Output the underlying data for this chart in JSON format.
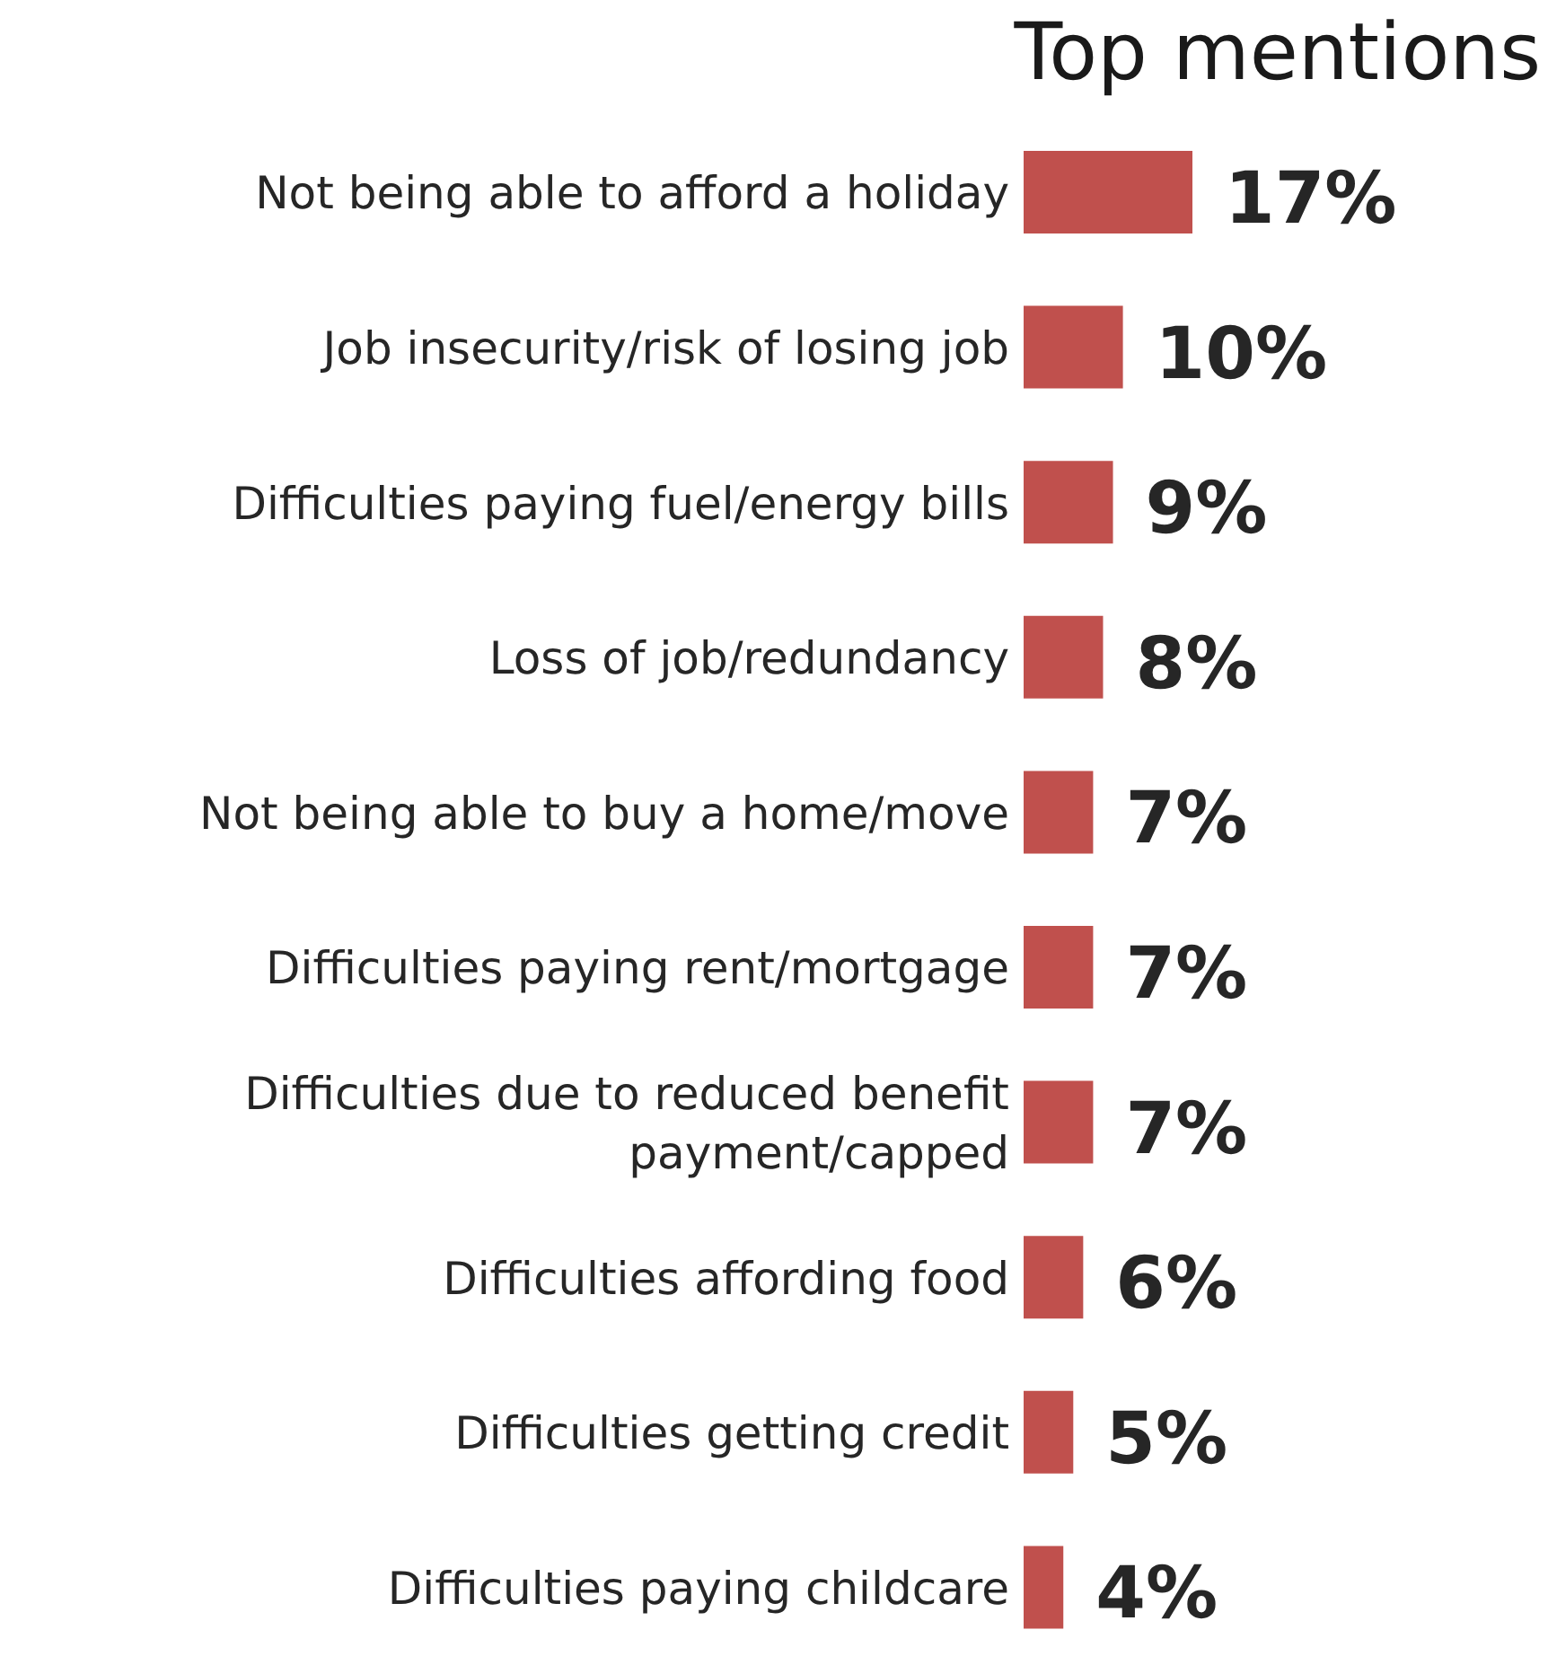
{
  "chart_data": {
    "type": "bar",
    "orientation": "horizontal",
    "title": "Top mentions",
    "categories": [
      "Not being able to afford a holiday",
      "Job insecurity/risk of losing job",
      "Difficulties paying fuel/energy bills",
      "Loss of job/redundancy",
      "Not being able to buy a home/move",
      "Difficulties paying rent/mortgage",
      "Difficulties due to reduced benefit payment/capped",
      "Difficulties affording food",
      "Difficulties getting credit",
      "Difficulties paying childcare"
    ],
    "values": [
      17,
      10,
      9,
      8,
      7,
      7,
      7,
      6,
      5,
      4
    ],
    "value_labels": [
      "17%",
      "10%",
      "9%",
      "8%",
      "7%",
      "7%",
      "7%",
      "6%",
      "5%",
      "4%"
    ],
    "color": "#c0504d",
    "grid": false,
    "legend": false
  }
}
